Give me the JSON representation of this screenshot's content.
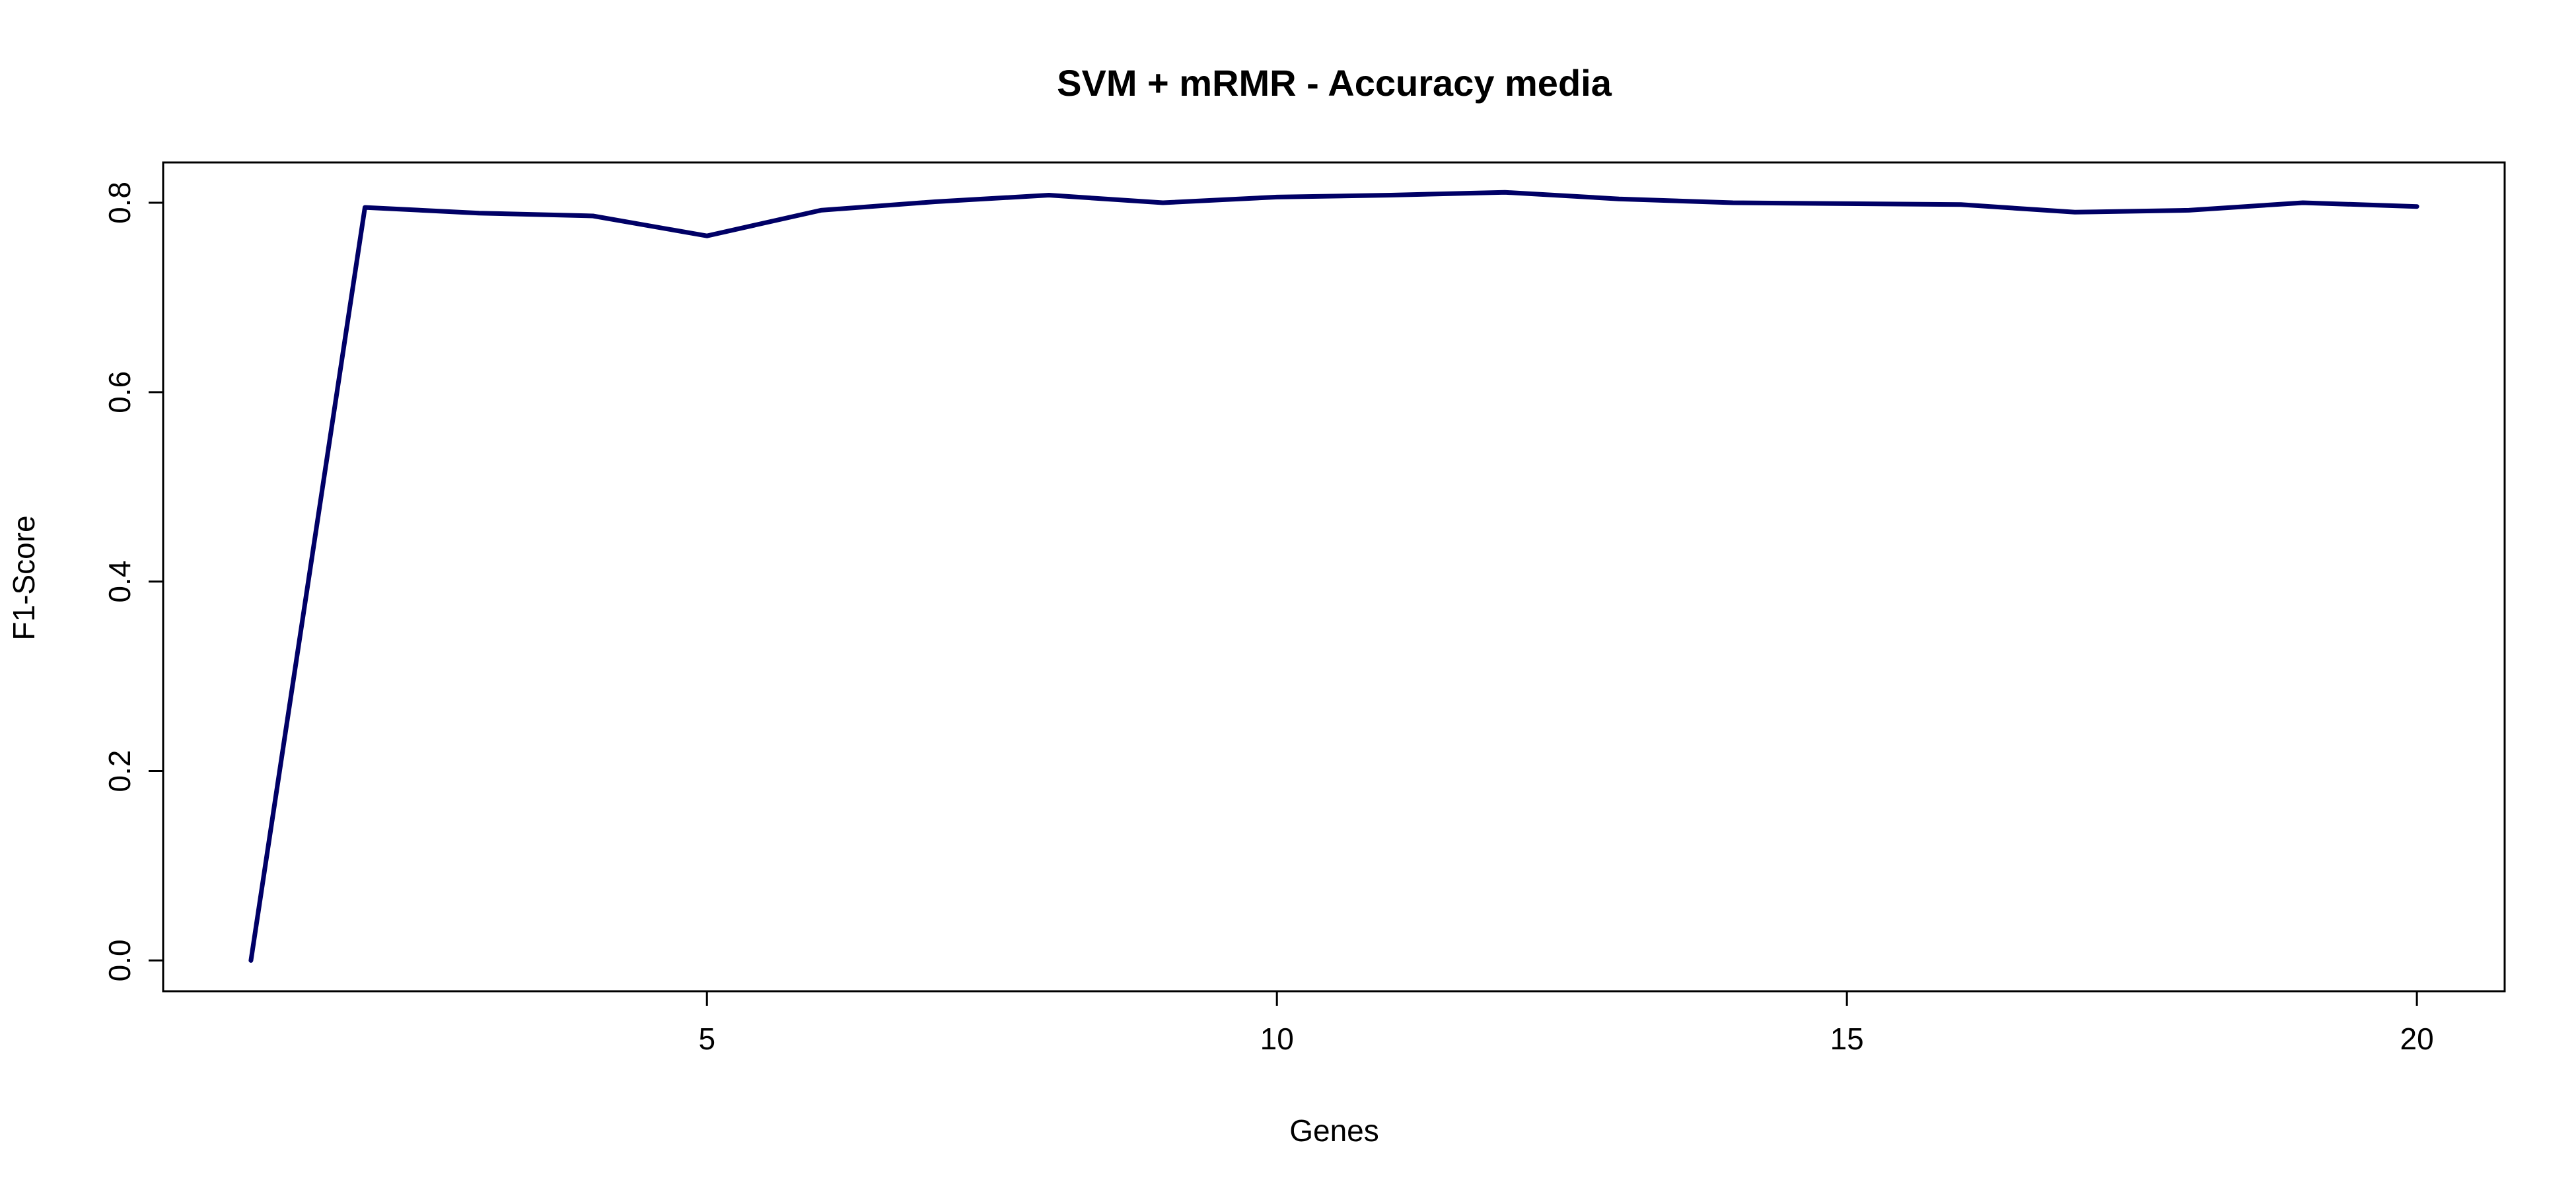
{
  "chart_data": {
    "type": "line",
    "title": "SVM + mRMR - Accuracy media",
    "xlabel": "Genes",
    "ylabel": "F1-Score",
    "xlim": [
      0.23,
      20.77
    ],
    "ylim": [
      -0.0325,
      0.8425
    ],
    "x_ticks": [
      5,
      10,
      15,
      20
    ],
    "y_ticks": [
      0.0,
      0.2,
      0.4,
      0.6,
      0.8
    ],
    "x_tick_labels": [
      "5",
      "10",
      "15",
      "20"
    ],
    "y_tick_labels": [
      "0.0",
      "0.2",
      "0.4",
      "0.6",
      "0.8"
    ],
    "grid": false,
    "legend": "none",
    "series": [
      {
        "color": "#000066",
        "x": [
          1,
          2,
          3,
          4,
          5,
          6,
          7,
          8,
          9,
          10,
          11,
          12,
          13,
          14,
          15,
          16,
          17,
          18,
          19,
          20
        ],
        "values": [
          0.0,
          0.795,
          0.789,
          0.786,
          0.765,
          0.792,
          0.801,
          0.808,
          0.8,
          0.806,
          0.808,
          0.811,
          0.804,
          0.8,
          0.799,
          0.798,
          0.79,
          0.792,
          0.8,
          0.796
        ]
      }
    ]
  }
}
